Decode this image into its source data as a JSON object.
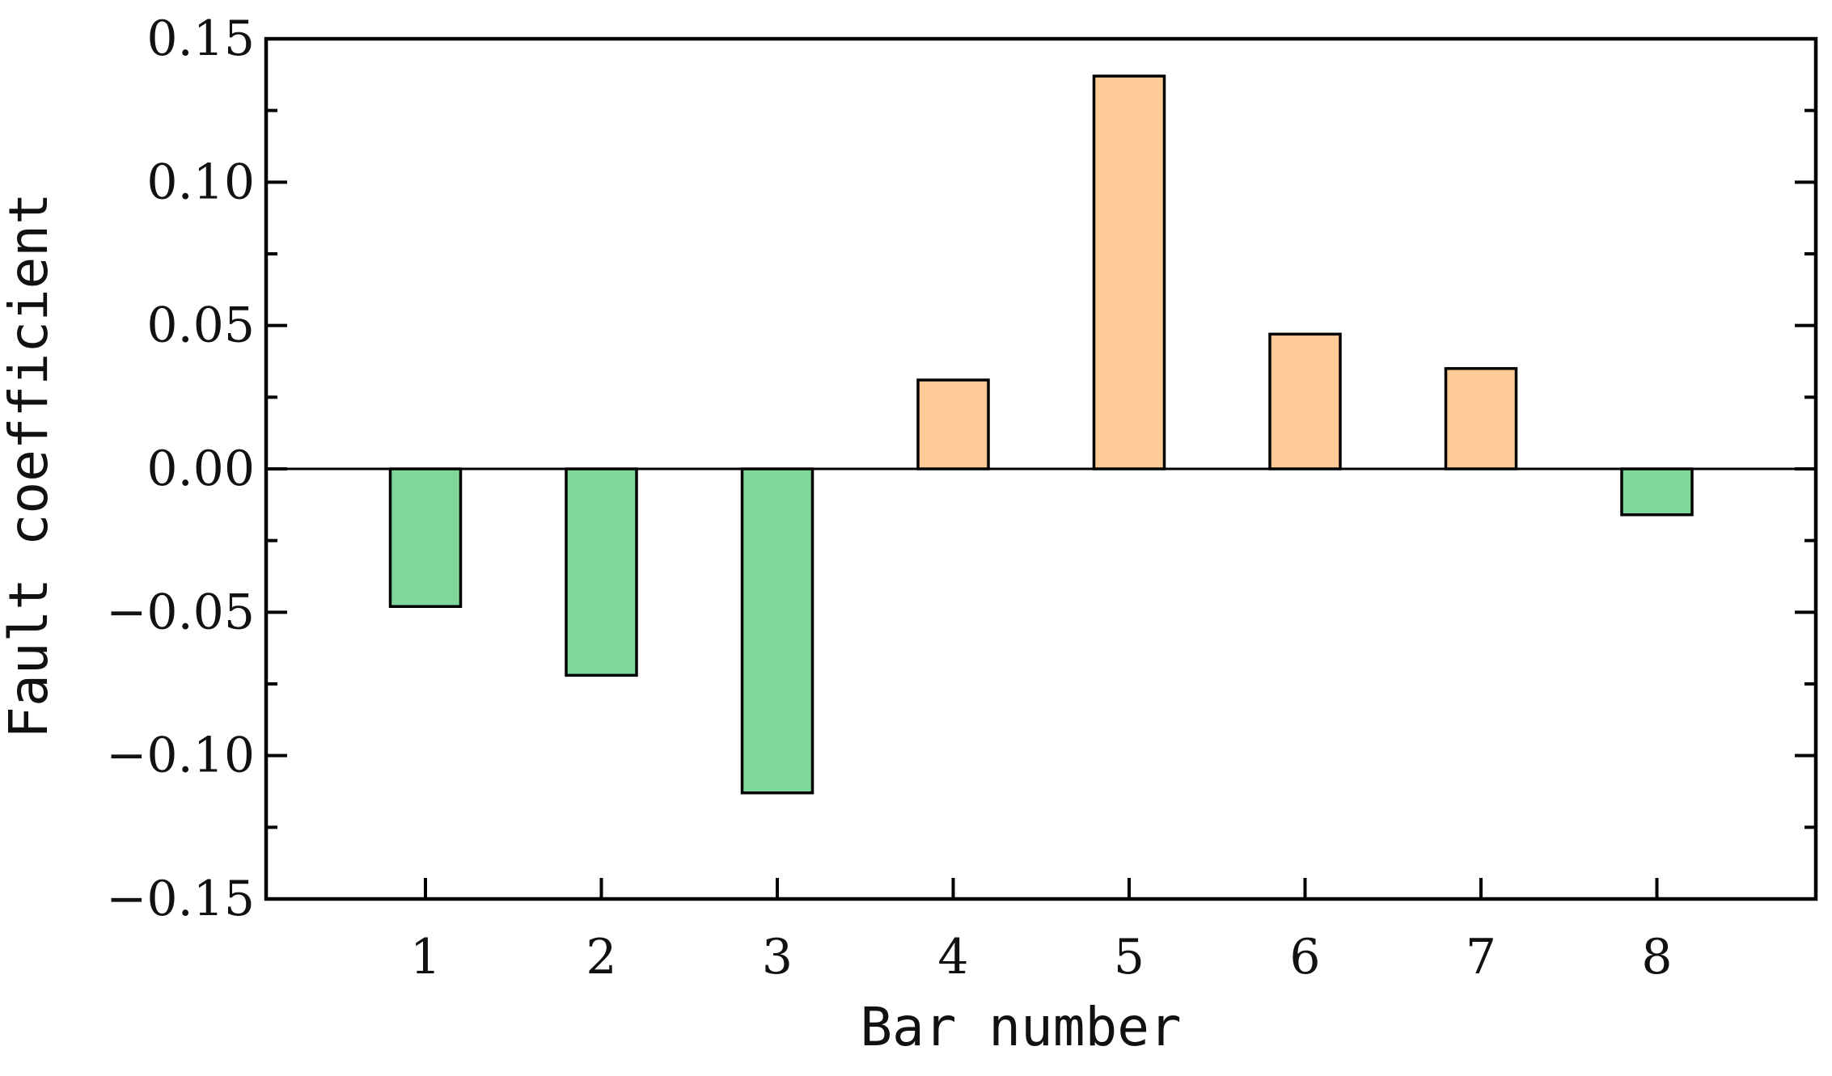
{
  "chart_data": {
    "type": "bar",
    "title": "",
    "xlabel": "Bar number",
    "ylabel": "Fault coefficient",
    "categories": [
      "1",
      "2",
      "3",
      "4",
      "5",
      "6",
      "7",
      "8"
    ],
    "values": [
      -0.048,
      -0.072,
      -0.113,
      0.031,
      0.137,
      0.047,
      0.035,
      -0.016
    ],
    "ylim": [
      -0.15,
      0.15
    ],
    "yticks": [
      -0.15,
      -0.1,
      -0.05,
      0.0,
      0.05,
      0.1,
      0.15
    ],
    "ytick_labels": [
      "−0.15",
      "−0.10",
      "−0.05",
      "0.00",
      "0.05",
      "0.10",
      "0.15"
    ],
    "grid": false,
    "legend": "none",
    "colors": {
      "positive": "#FFCA96",
      "negative": "#7FD899",
      "outline": "#000000"
    }
  }
}
